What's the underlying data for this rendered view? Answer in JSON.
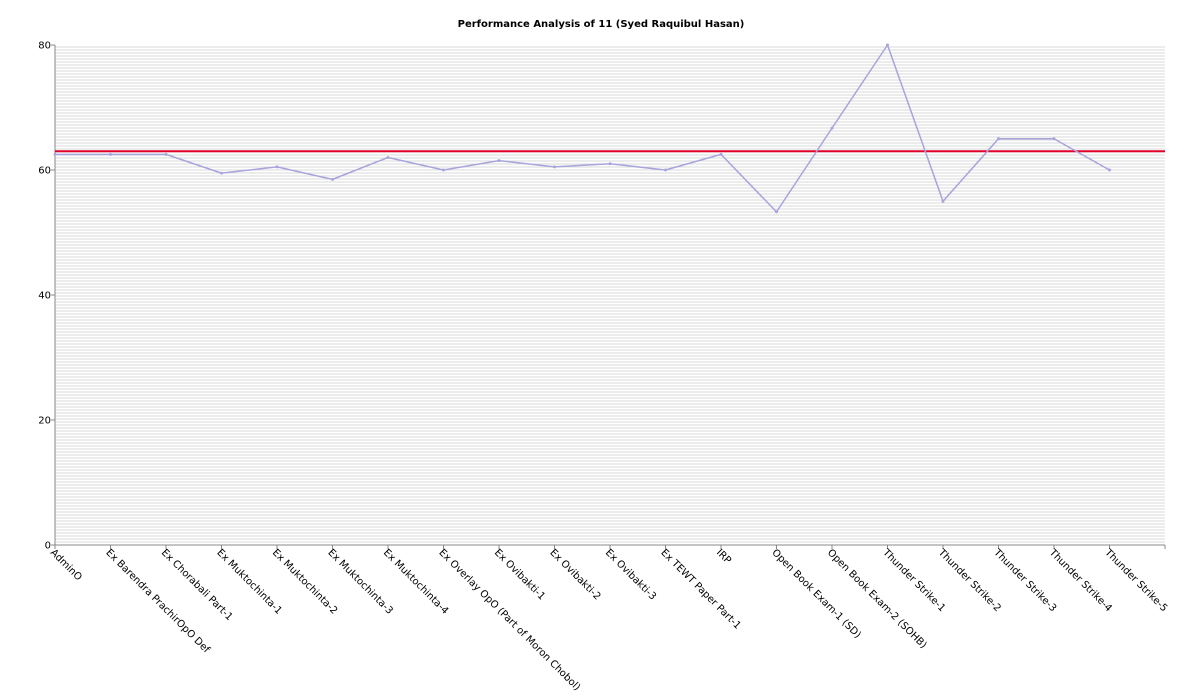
{
  "chart_data": {
    "type": "line",
    "title": "Performance Analysis of 11 (Syed Raquibul Hasan)",
    "xlabel": "",
    "ylabel": "",
    "ylim": [
      0,
      80
    ],
    "yticks": [
      0,
      20,
      40,
      60,
      80
    ],
    "grid": "horizontal",
    "categories": [
      "AdminO",
      "Ex Barendra PrachirOpO Def",
      "Ex Chorabali Part-1",
      "Ex Muktochinta-1",
      "Ex Muktochinta-2",
      "Ex Muktochinta-3",
      "Ex Muktochinta-4",
      "Ex Overlay OpO (Part of Moron Chobol)",
      "Ex Ovibakti-1",
      "Ex Ovibakti-2",
      "Ex Ovibakti-3",
      "Ex TEWT Paper Part-1",
      "IRP",
      "Open Book Exam-1 (SD)",
      "Open Book Exam-2 (SOHB)",
      "Thunder Strike-1",
      "Thunder Strike-2",
      "Thunder Strike-3",
      "Thunder Strike-4",
      "Thunder Strike-5"
    ],
    "series": [
      {
        "color": "#a8a4dc",
        "values": [
          62.5,
          62.5,
          62.5,
          59.5,
          60.5,
          58.5,
          62.0,
          60.0,
          61.5,
          60.5,
          61.0,
          60.0,
          62.5,
          53.3,
          66.7,
          80.0,
          55.0,
          65.0,
          65.0,
          60.0
        ]
      }
    ],
    "reference_line": {
      "value": 63.0,
      "color": "#e0002a"
    }
  }
}
